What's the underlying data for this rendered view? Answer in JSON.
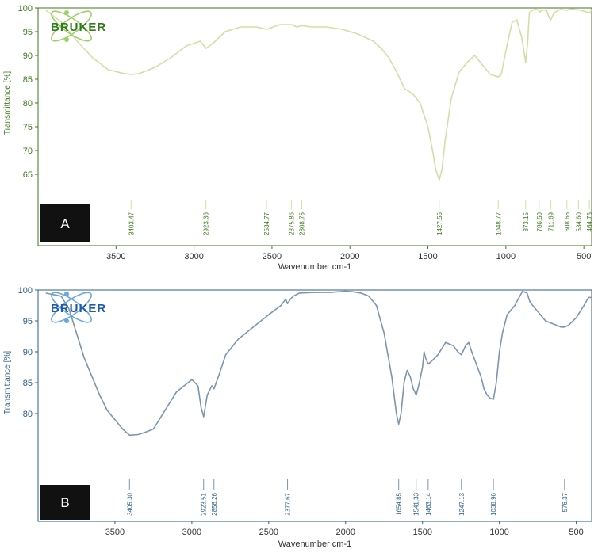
{
  "brand": {
    "logo_text": "BRUKER"
  },
  "chart_data": [
    {
      "type": "line",
      "panel_label": "A",
      "title": "",
      "xlabel": "Wavenumber cm-1",
      "ylabel": "Transmittance [%]",
      "xlim": [
        4000,
        450
      ],
      "ylim": [
        60,
        100
      ],
      "x_ticks": [
        3500,
        3000,
        2500,
        2000,
        1500,
        1000,
        500
      ],
      "y_ticks": [
        65,
        70,
        75,
        80,
        85,
        90,
        95,
        100
      ],
      "colors": {
        "axis": "#3d7a1e",
        "line": "#cfe0a6",
        "text": "#3d7a1e",
        "logo": "#2f7a1a",
        "logo_orbit": "#9fd06a"
      },
      "series": [
        {
          "x": [
            3950,
            3850,
            3750,
            3650,
            3550,
            3450,
            3400,
            3350,
            3250,
            3150,
            3050,
            2960,
            2923,
            2880,
            2800,
            2700,
            2600,
            2534,
            2450,
            2375,
            2340,
            2309,
            2250,
            2150,
            2050,
            1950,
            1850,
            1800,
            1750,
            1700,
            1650,
            1600,
            1550,
            1500,
            1470,
            1450,
            1427,
            1410,
            1390,
            1350,
            1300,
            1250,
            1200,
            1150,
            1100,
            1060,
            1049,
            1030,
            1000,
            960,
            930,
            900,
            885,
            873,
            860,
            850,
            830,
            810,
            790,
            786,
            770,
            740,
            720,
            712,
            690,
            650,
            609,
            580,
            534,
            500,
            465,
            450
          ],
          "y": [
            99.5,
            97.0,
            93.0,
            89.5,
            87.0,
            86.2,
            86.0,
            86.2,
            87.5,
            89.5,
            92.0,
            93.0,
            91.5,
            92.5,
            95.0,
            96.0,
            96.0,
            95.5,
            96.5,
            96.5,
            96.0,
            96.3,
            96.0,
            96.0,
            95.5,
            94.5,
            93.0,
            91.5,
            89.5,
            86.5,
            83.0,
            82.0,
            80.0,
            75.0,
            70.0,
            66.0,
            63.8,
            66.0,
            72.0,
            81.0,
            86.5,
            88.5,
            90.0,
            88.0,
            86.0,
            85.6,
            85.5,
            86.0,
            91.0,
            97.0,
            97.5,
            94.0,
            91.0,
            88.5,
            93.0,
            99.0,
            99.5,
            99.8,
            99.5,
            99.0,
            99.5,
            99.5,
            97.8,
            97.5,
            99.0,
            99.7,
            99.5,
            99.8,
            99.6,
            99.3,
            99.0,
            99.5
          ]
        }
      ],
      "peaks": [
        "3403.47",
        "2923.36",
        "2534.77",
        "2375.86",
        "2308.75",
        "1427.55",
        "1048.77",
        "873.15",
        "786.50",
        "711.69",
        "608.66",
        "534.60",
        "464.75"
      ]
    },
    {
      "type": "line",
      "panel_label": "B",
      "title": "",
      "xlabel": "Wavenumber cm-1",
      "ylabel": "Transmittance [%]",
      "xlim": [
        4000,
        400
      ],
      "ylim": [
        70,
        100
      ],
      "x_ticks": [
        3500,
        3000,
        2500,
        2000,
        1500,
        1000,
        500
      ],
      "y_ticks": [
        80,
        85,
        90,
        95,
        100
      ],
      "colors": {
        "axis": "#2a5f8a",
        "line": "#7c95b0",
        "text": "#2a5f8a",
        "logo": "#1f5aa8",
        "logo_orbit": "#6aa6e0"
      },
      "series": [
        {
          "x": [
            3950,
            3850,
            3800,
            3750,
            3700,
            3650,
            3600,
            3550,
            3500,
            3450,
            3405,
            3350,
            3300,
            3250,
            3200,
            3150,
            3100,
            3050,
            3000,
            2960,
            2940,
            2923,
            2900,
            2870,
            2856,
            2820,
            2780,
            2700,
            2600,
            2500,
            2420,
            2390,
            2378,
            2360,
            2340,
            2300,
            2200,
            2100,
            2000,
            1950,
            1900,
            1850,
            1800,
            1750,
            1700,
            1670,
            1655,
            1640,
            1620,
            1600,
            1580,
            1560,
            1541,
            1520,
            1500,
            1490,
            1480,
            1463,
            1440,
            1400,
            1350,
            1300,
            1270,
            1247,
            1220,
            1200,
            1180,
            1150,
            1120,
            1100,
            1080,
            1060,
            1039,
            1020,
            1000,
            980,
            950,
            900,
            850,
            820,
            800,
            750,
            700,
            650,
            600,
            576,
            550,
            500,
            450,
            420,
            400
          ],
          "y": [
            99.5,
            99.0,
            97.0,
            93.0,
            89.0,
            86.0,
            83.0,
            80.5,
            79.0,
            77.5,
            76.5,
            76.6,
            77.0,
            77.5,
            79.5,
            81.5,
            83.5,
            84.5,
            85.5,
            84.5,
            81.0,
            79.5,
            83.0,
            84.5,
            84.0,
            86.5,
            89.5,
            92.0,
            94.0,
            96.0,
            97.5,
            98.5,
            97.8,
            98.5,
            99.0,
            99.5,
            99.6,
            99.6,
            99.8,
            99.7,
            99.5,
            99.0,
            97.5,
            93.0,
            86.0,
            80.0,
            78.3,
            80.0,
            85.0,
            87.0,
            86.0,
            84.0,
            83.0,
            85.0,
            87.5,
            90.0,
            89.0,
            88.0,
            88.5,
            89.5,
            91.5,
            91.0,
            90.0,
            89.5,
            91.0,
            91.5,
            90.0,
            88.0,
            86.0,
            84.0,
            83.0,
            82.5,
            82.3,
            85.0,
            90.0,
            93.0,
            96.0,
            97.5,
            99.8,
            99.5,
            98.0,
            96.5,
            95.0,
            94.5,
            94.0,
            94.0,
            94.3,
            95.5,
            97.5,
            98.8,
            98.8
          ]
        }
      ],
      "peaks": [
        "3405.30",
        "2923.51",
        "2856.26",
        "2377.67",
        "1654.85",
        "1541.33",
        "1463.14",
        "1247.13",
        "1038.96",
        "576.37"
      ]
    }
  ]
}
